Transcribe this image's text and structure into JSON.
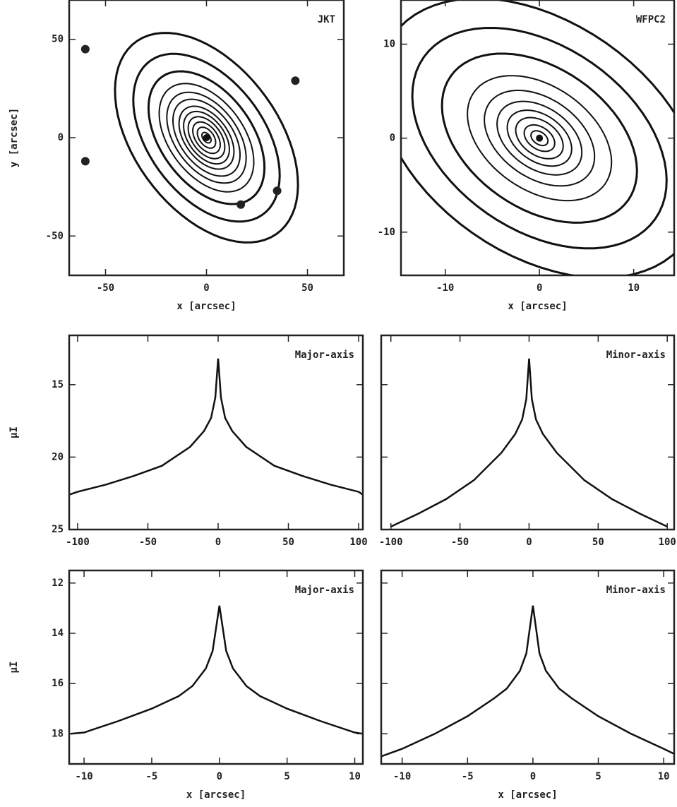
{
  "chart_data": [
    {
      "type": "contour",
      "title": "JKT",
      "xlabel": "x [arcsec]",
      "ylabel": "y [arcsec]",
      "xlim": [
        -68,
        68
      ],
      "ylim": [
        -70,
        70
      ],
      "xticks": [
        -50,
        0,
        50
      ],
      "yticks": [
        -50,
        0,
        50
      ],
      "ytick_labels": true,
      "isophotes": {
        "a": [
          60,
          48,
          38,
          31,
          26,
          22,
          18,
          15,
          12,
          9,
          6,
          3
        ],
        "axis_ratio": 0.6,
        "angle": -55
      },
      "stars": {
        "x": [
          -60,
          -60,
          44,
          17,
          35
        ],
        "y": [
          45,
          -12,
          29,
          -34,
          -27
        ]
      }
    },
    {
      "type": "contour",
      "title": "WFPC2",
      "xlabel": "x [arcsec]",
      "xlim": [
        -14.7,
        14.3
      ],
      "ylim": [
        -14.6,
        14.7
      ],
      "xticks": [
        -10,
        0,
        10
      ],
      "yticks": [
        -10,
        0,
        10
      ],
      "ytick_labels": true,
      "isophotes": {
        "a": [
          19,
          15,
          11.5,
          8.5,
          6.5,
          5,
          3.8,
          2.8,
          1.8,
          1
        ],
        "axis_ratio": 0.65,
        "angle": -35
      }
    },
    {
      "type": "line",
      "title": "Major-axis",
      "ylabel": "μI",
      "xlim": [
        -106,
        103
      ],
      "ylim": [
        25,
        11.6
      ],
      "xticks": [
        -100,
        -50,
        0,
        50,
        100
      ],
      "yticks": [
        15,
        20,
        25
      ],
      "ytick_labels": true,
      "x": [
        -106,
        -100,
        -80,
        -60,
        -40,
        -20,
        -10,
        -5,
        -2,
        0,
        2,
        5,
        10,
        20,
        40,
        60,
        80,
        100,
        103
      ],
      "series": [
        {
          "color": "#111",
          "values": [
            22.6,
            22.4,
            21.9,
            21.3,
            20.6,
            19.3,
            18.2,
            17.3,
            15.9,
            13.2,
            15.9,
            17.3,
            18.2,
            19.3,
            20.6,
            21.3,
            21.9,
            22.4,
            22.6
          ]
        }
      ]
    },
    {
      "type": "line",
      "title": "Minor-axis",
      "xlim": [
        -107,
        105
      ],
      "ylim": [
        25,
        11.6
      ],
      "xticks": [
        -100,
        -50,
        0,
        50,
        100
      ],
      "yticks": [
        15,
        20,
        25
      ],
      "ytick_labels": false,
      "x": [
        -100,
        -80,
        -60,
        -40,
        -20,
        -10,
        -5,
        -2,
        0,
        2,
        5,
        10,
        20,
        40,
        60,
        80,
        100
      ],
      "series": [
        {
          "color": "#111",
          "values": [
            24.8,
            23.9,
            22.9,
            21.6,
            19.7,
            18.4,
            17.4,
            16,
            13.2,
            16,
            17.4,
            18.4,
            19.7,
            21.6,
            22.9,
            23.9,
            24.8
          ]
        }
      ]
    },
    {
      "type": "line",
      "title": "Major-axis",
      "xlabel": "x [arcsec]",
      "ylabel": "μI",
      "xlim": [
        -11.1,
        10.6
      ],
      "ylim": [
        19.2,
        11.5
      ],
      "xticks": [
        -10,
        -5,
        0,
        5,
        10
      ],
      "yticks": [
        12,
        14,
        16,
        18
      ],
      "ytick_labels": true,
      "x": [
        -11,
        -10,
        -7.5,
        -5,
        -3,
        -2,
        -1,
        -0.5,
        0,
        0.5,
        1,
        2,
        3,
        5,
        7.5,
        10,
        10.6
      ],
      "series": [
        {
          "color": "#111",
          "values": [
            18,
            17.95,
            17.5,
            17,
            16.5,
            16.1,
            15.4,
            14.7,
            12.9,
            14.7,
            15.4,
            16.1,
            16.5,
            17,
            17.5,
            17.95,
            18
          ]
        }
      ]
    },
    {
      "type": "line",
      "title": "Minor-axis",
      "xlabel": "x [arcsec]",
      "xlim": [
        -11.6,
        10.8
      ],
      "ylim": [
        19.2,
        11.5
      ],
      "xticks": [
        -10,
        -5,
        0,
        5,
        10
      ],
      "yticks": [
        12,
        14,
        16,
        18
      ],
      "ytick_labels": false,
      "x": [
        -11.6,
        -10,
        -7.5,
        -5,
        -3,
        -2,
        -1,
        -0.5,
        0,
        0.5,
        1,
        2,
        3,
        5,
        7.5,
        10,
        10.8
      ],
      "series": [
        {
          "color": "#111",
          "values": [
            18.9,
            18.6,
            18,
            17.3,
            16.6,
            16.2,
            15.5,
            14.8,
            12.9,
            14.8,
            15.5,
            16.2,
            16.6,
            17.3,
            18,
            18.6,
            18.8
          ]
        }
      ]
    }
  ]
}
